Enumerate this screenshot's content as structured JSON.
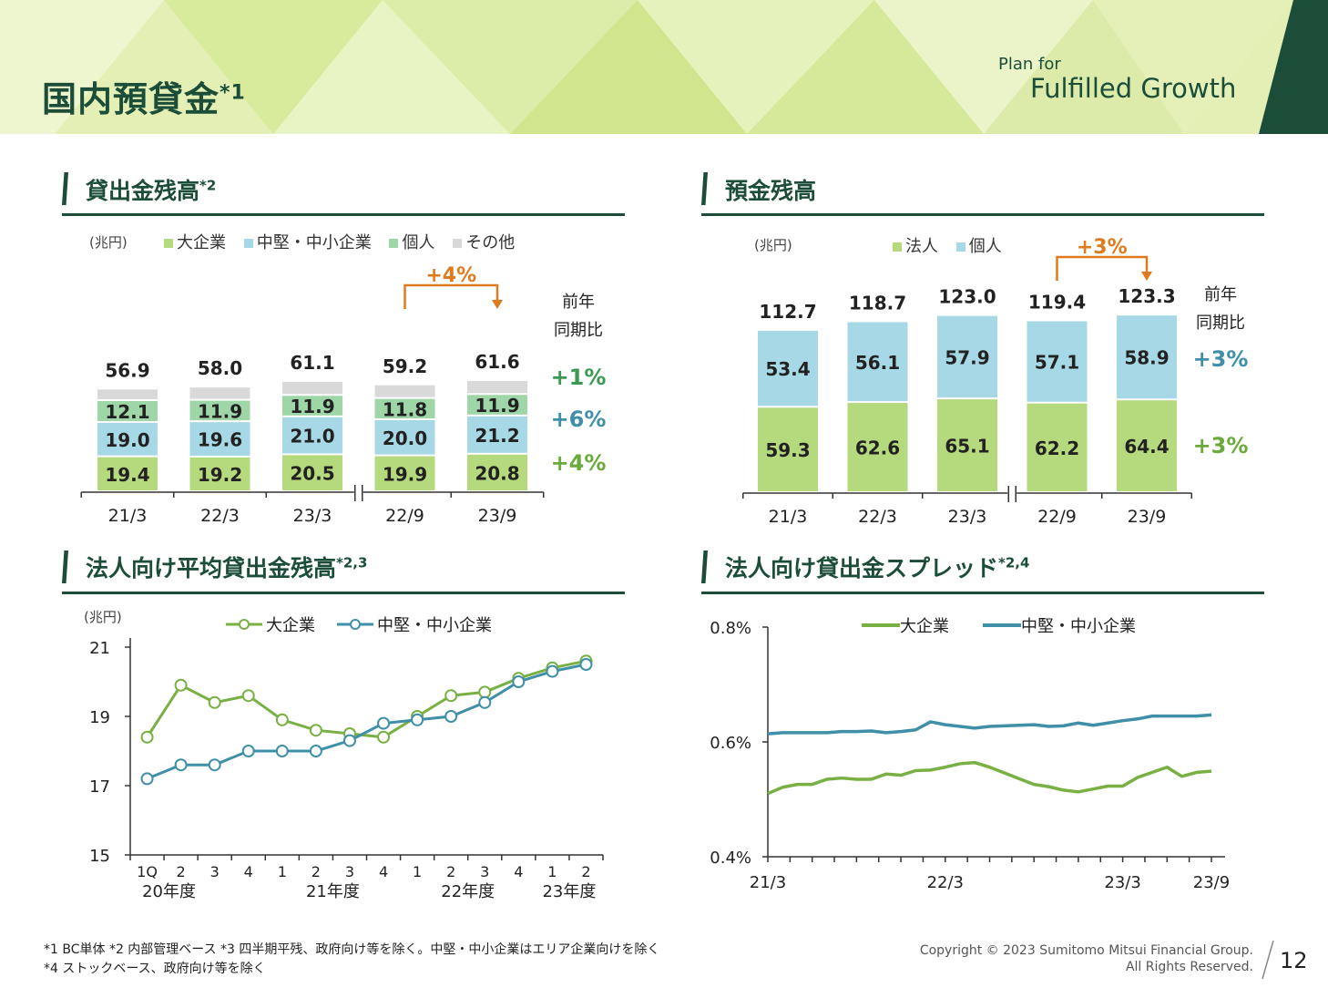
{
  "header": {
    "title": "国内預貸金",
    "title_mark": "*1",
    "logo_line1": "Plan for",
    "logo_line2": "Fulfilled Growth"
  },
  "sections": {
    "loans": {
      "title": "貸出金残高",
      "mark": "*2"
    },
    "deposits": {
      "title": "預金残高",
      "mark": ""
    },
    "avg_loans": {
      "title": "法人向け平均貸出金残高",
      "mark": "*2,3"
    },
    "spread": {
      "title": "法人向け貸出金スプレッド",
      "mark": "*2,4"
    }
  },
  "chart_data": [
    {
      "id": "loans",
      "type": "bar",
      "unit": "(兆円)",
      "categories": [
        "21/3",
        "22/3",
        "23/3",
        "22/9",
        "23/9"
      ],
      "series": [
        {
          "name": "大企業",
          "values": [
            19.4,
            19.2,
            20.5,
            19.9,
            20.8
          ],
          "color": "#b5d97d"
        },
        {
          "name": "中堅・中小企業",
          "values": [
            19.0,
            19.6,
            21.0,
            20.0,
            21.2
          ],
          "color": "#a6d8e6"
        },
        {
          "name": "個人",
          "values": [
            12.1,
            11.9,
            11.9,
            11.8,
            11.9
          ],
          "color": "#9ed6a8"
        },
        {
          "name": "その他",
          "values": [
            6.4,
            7.3,
            7.7,
            7.5,
            7.7
          ],
          "color": "#d9d9d9"
        }
      ],
      "totals": [
        "56.9",
        "58.0",
        "61.1",
        "59.2",
        "61.6"
      ],
      "change_label": "+4%",
      "yoy_header": [
        "前年",
        "同期比"
      ],
      "yoy": [
        {
          "label": "+1%",
          "color": "#3a9a52"
        },
        {
          "label": "+6%",
          "color": "#3f8fa8"
        },
        {
          "label": "+4%",
          "color": "#6aaa3a"
        }
      ]
    },
    {
      "id": "deposits",
      "type": "bar",
      "unit": "(兆円)",
      "categories": [
        "21/3",
        "22/3",
        "23/3",
        "22/9",
        "23/9"
      ],
      "series": [
        {
          "name": "法人",
          "values": [
            59.3,
            62.6,
            65.1,
            62.2,
            64.4
          ],
          "color": "#b5d97d"
        },
        {
          "name": "個人",
          "values": [
            53.4,
            56.1,
            57.9,
            57.1,
            58.9
          ],
          "color": "#a6d8e6"
        }
      ],
      "totals": [
        "112.7",
        "118.7",
        "123.0",
        "119.4",
        "123.3"
      ],
      "change_label": "+3%",
      "yoy_header": [
        "前年",
        "同期比"
      ],
      "yoy": [
        {
          "label": "+3%",
          "color": "#3f8fa8"
        },
        {
          "label": "+3%",
          "color": "#6aaa3a"
        }
      ]
    },
    {
      "id": "avg_loans",
      "type": "line",
      "unit": "(兆円)",
      "x": [
        "1Q",
        "2",
        "3",
        "4",
        "1",
        "2",
        "3",
        "4",
        "1",
        "2",
        "3",
        "4",
        "1",
        "2"
      ],
      "groups": [
        "20年度",
        "21年度",
        "22年度",
        "23年度"
      ],
      "ylim": [
        15,
        21
      ],
      "yticks": [
        "15",
        "17",
        "19",
        "21"
      ],
      "series": [
        {
          "name": "大企業",
          "color": "#78b043",
          "values": [
            18.4,
            19.9,
            19.4,
            19.6,
            18.9,
            18.6,
            18.5,
            18.4,
            19.0,
            19.6,
            19.7,
            20.1,
            20.4,
            20.6
          ]
        },
        {
          "name": "中堅・中小企業",
          "color": "#3f8fa8",
          "values": [
            17.2,
            17.6,
            17.6,
            18.0,
            18.0,
            18.0,
            18.3,
            18.8,
            18.9,
            19.0,
            19.4,
            20.0,
            20.3,
            20.5
          ]
        }
      ]
    },
    {
      "id": "spread",
      "type": "line",
      "x_ticks": [
        "21/3",
        "22/3",
        "23/3",
        "23/9"
      ],
      "ylim": [
        0.4,
        0.8
      ],
      "yticks": [
        "0.4%",
        "0.6%",
        "0.8%"
      ],
      "series": [
        {
          "name": "大企業",
          "color": "#78b043",
          "values": [
            0.51,
            0.521,
            0.526,
            0.526,
            0.535,
            0.537,
            0.535,
            0.535,
            0.544,
            0.542,
            0.55,
            0.551,
            0.556,
            0.562,
            0.564,
            0.556,
            0.546,
            0.536,
            0.526,
            0.522,
            0.516,
            0.513,
            0.518,
            0.523,
            0.523,
            0.538,
            0.547,
            0.556,
            0.54,
            0.547,
            0.549
          ]
        },
        {
          "name": "中堅・中小企業",
          "color": "#3f8fa8",
          "values": [
            0.614,
            0.616,
            0.616,
            0.616,
            0.616,
            0.618,
            0.618,
            0.619,
            0.616,
            0.618,
            0.621,
            0.635,
            0.63,
            0.627,
            0.624,
            0.627,
            0.628,
            0.629,
            0.63,
            0.627,
            0.628,
            0.633,
            0.629,
            0.633,
            0.637,
            0.64,
            0.645,
            0.645,
            0.645,
            0.645,
            0.647
          ]
        }
      ]
    }
  ],
  "footer": {
    "note1": "*1 BC単体 *2 内部管理ベース *3 四半期平残、政府向け等を除く。中堅・中小企業はエリア企業向けを除く",
    "note2": "*4 ストックベース、政府向け等を除く",
    "copyright1": "Copyright © 2023 Sumitomo Mitsui Financial Group.",
    "copyright2": "All Rights Reserved.",
    "page": "12"
  }
}
